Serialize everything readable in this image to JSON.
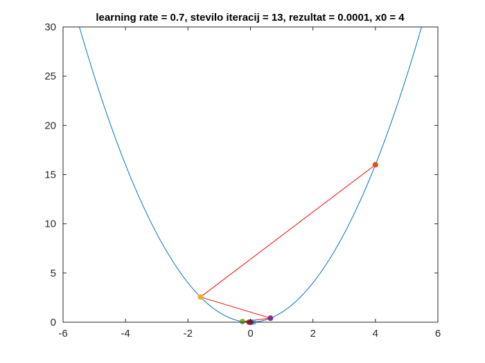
{
  "chart_data": {
    "type": "line",
    "title": "learning rate = 0.7, stevilo iteracij = 13, rezultat = 0.0001, x0 = 4",
    "xlabel": "",
    "ylabel": "",
    "xlim": [
      -6,
      6
    ],
    "ylim": [
      0,
      30
    ],
    "xticks": [
      -6,
      -4,
      -2,
      0,
      2,
      4,
      6
    ],
    "yticks": [
      0,
      5,
      10,
      15,
      20,
      25,
      30
    ],
    "grid": false,
    "legend": "none",
    "curve": {
      "function": "x^2",
      "x_range": [
        -6,
        6
      ],
      "color": "#0072BD"
    },
    "path": {
      "color": "#ff0000",
      "points": [
        {
          "x": 4.0,
          "y": 16.0
        },
        {
          "x": -1.6,
          "y": 2.56
        },
        {
          "x": 0.64,
          "y": 0.4096
        },
        {
          "x": -0.256,
          "y": 0.0655
        },
        {
          "x": 0.1024,
          "y": 0.0105
        },
        {
          "x": -0.041,
          "y": 0.0017
        },
        {
          "x": 0.0164,
          "y": 0.0003
        },
        {
          "x": -0.0066,
          "y": 0.0
        },
        {
          "x": 0.0026,
          "y": 0.0
        },
        {
          "x": -0.001,
          "y": 0.0
        },
        {
          "x": 0.0004,
          "y": 0.0
        },
        {
          "x": -0.0002,
          "y": 0.0
        },
        {
          "x": 0.0001,
          "y": 0.0
        }
      ]
    },
    "marker_colors": [
      "#D95319",
      "#EDB120",
      "#7E2F8E",
      "#77AC30",
      "#4DBEEE",
      "#A2142F",
      "#0072BD",
      "#D95319",
      "#EDB120",
      "#7E2F8E",
      "#77AC30",
      "#4DBEEE",
      "#A2142F"
    ]
  }
}
